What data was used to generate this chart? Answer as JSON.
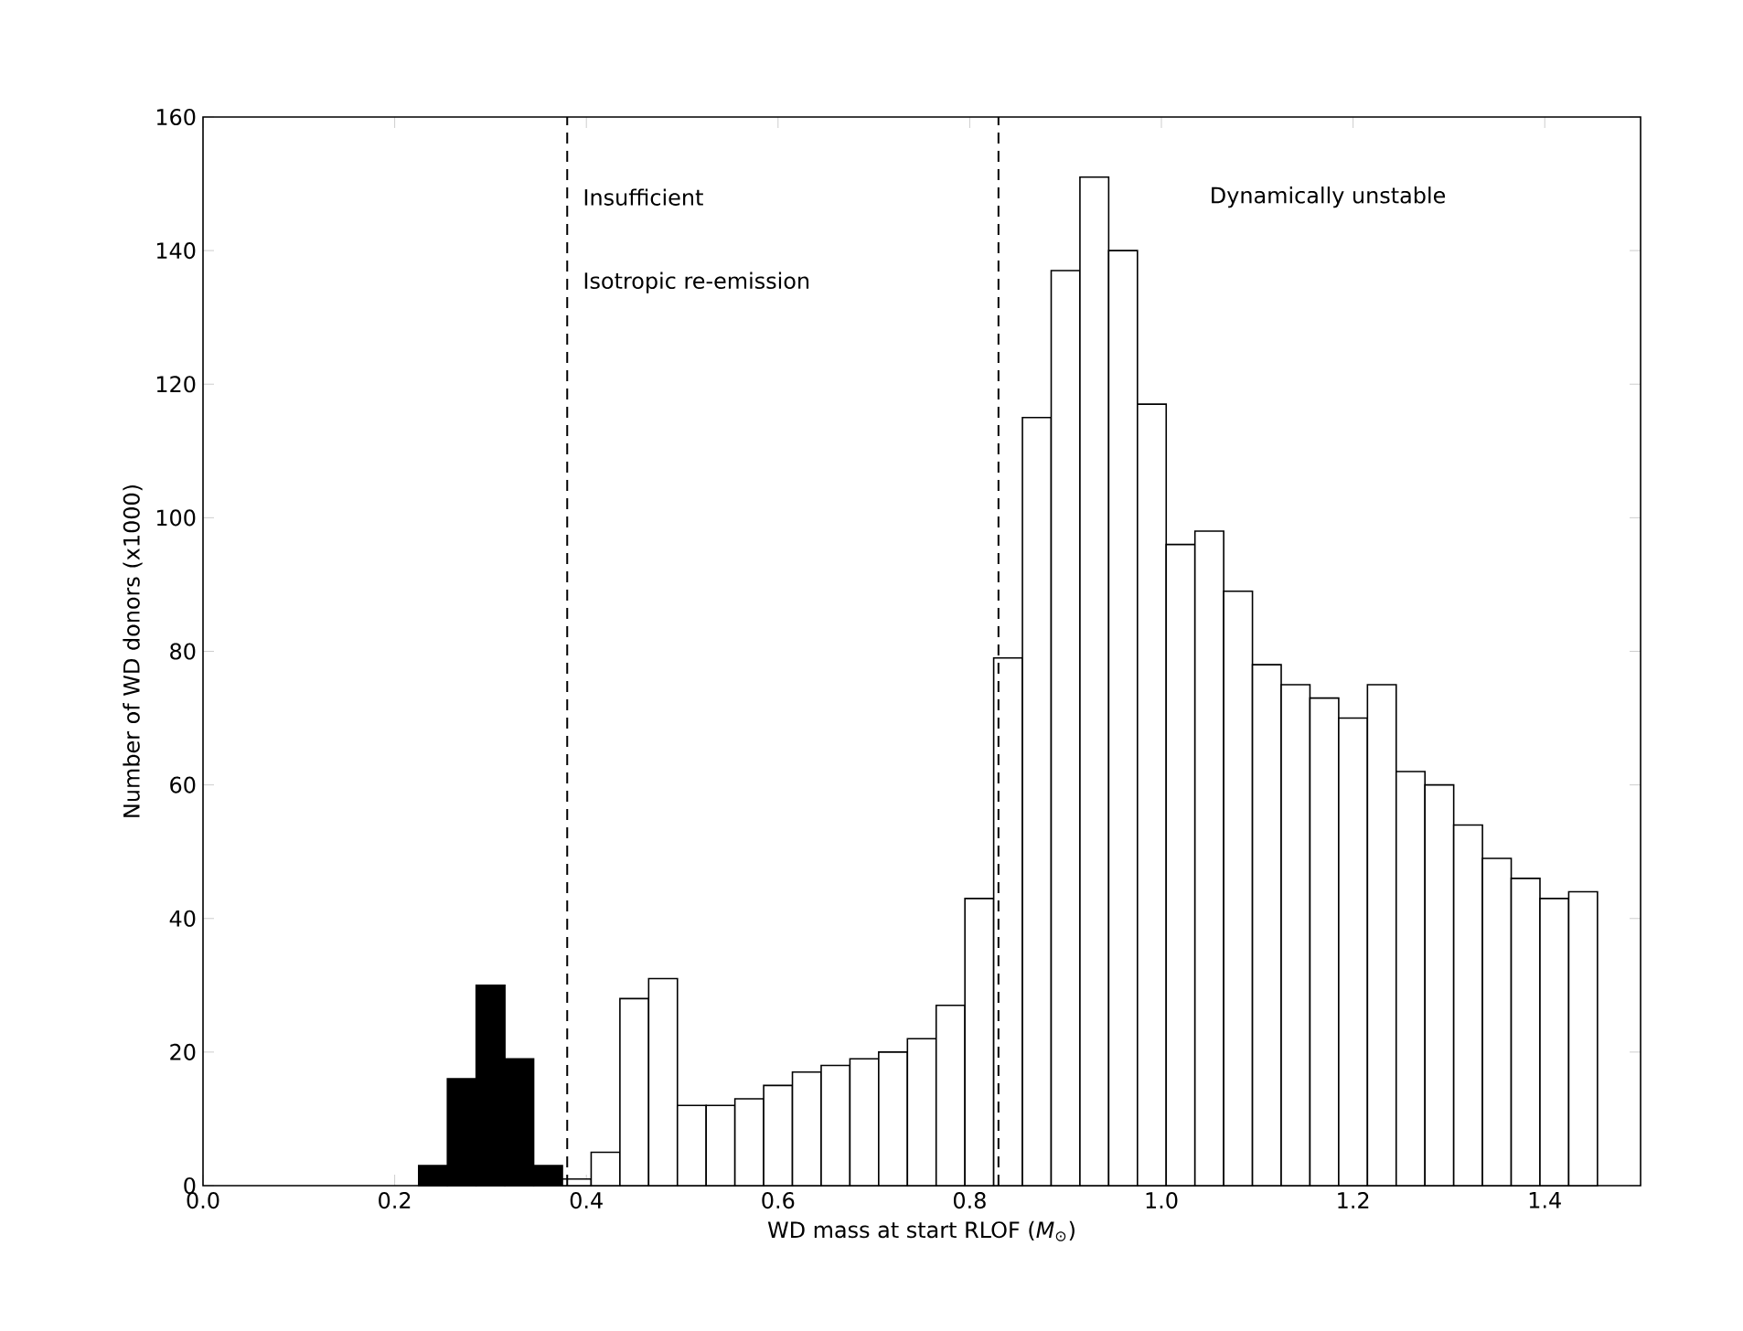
{
  "chart_data": {
    "type": "histogram",
    "xlabel": "WD mass at start RLOF (*M*$_{⊙}$)",
    "ylabel": "Number of WD donors (x1000)",
    "bins": [
      0.225,
      0.255,
      0.285,
      0.315,
      0.345,
      0.375,
      0.405,
      0.435,
      0.465,
      0.495,
      0.525,
      0.555,
      0.585,
      0.615,
      0.645,
      0.675,
      0.705,
      0.735,
      0.765,
      0.795,
      0.825,
      0.855,
      0.885,
      0.915,
      0.945,
      0.975,
      1.005,
      1.035,
      1.065,
      1.095,
      1.125,
      1.155,
      1.185,
      1.215,
      1.245,
      1.275,
      1.305,
      1.335,
      1.365,
      1.395,
      1.425,
      1.455
    ],
    "series": [
      {
        "color": "#000000",
        "values": [
          3,
          16,
          30,
          19,
          3,
          null,
          null,
          null,
          null,
          null,
          null,
          null,
          null,
          null,
          null,
          null,
          null,
          null,
          null,
          null,
          null,
          null,
          null,
          null,
          null,
          null,
          null,
          null,
          null,
          null,
          null,
          null,
          null,
          null,
          null,
          null,
          null,
          null,
          null,
          null,
          null
        ]
      },
      {
        "color": "#ffffff",
        "values": [
          null,
          null,
          null,
          null,
          null,
          1,
          5,
          28,
          31,
          12,
          12,
          13,
          15,
          17,
          18,
          19,
          20,
          22,
          27,
          43,
          79,
          115,
          137,
          151,
          140,
          117,
          96,
          98,
          89,
          78,
          75,
          73,
          70,
          75,
          62,
          60,
          54,
          49,
          46,
          43,
          44
        ]
      }
    ],
    "xlim": [
      0,
      1.5
    ],
    "ylim": [
      0,
      160
    ],
    "xticks": [
      {
        "value": 0,
        "label": "0.0"
      },
      {
        "value": 0.2,
        "label": "0.2"
      },
      {
        "value": 0.4,
        "label": "0.4"
      },
      {
        "value": 0.6,
        "label": "0.6"
      },
      {
        "value": 0.8,
        "label": "0.8"
      },
      {
        "value": 1.0,
        "label": "1.0"
      },
      {
        "value": 1.2,
        "label": "1.2"
      },
      {
        "value": 1.4,
        "label": "1.4"
      }
    ],
    "yticks": [
      0,
      20,
      40,
      60,
      80,
      100,
      120,
      140,
      160
    ],
    "ref_lines": [
      {
        "axis": "x",
        "value": 0.38,
        "line_style": "dashed",
        "color": "#000000"
      },
      {
        "axis": "x",
        "value": 0.83,
        "line_style": "dashed",
        "color": "#000000"
      }
    ],
    "annotations": [
      "Insufficient",
      "Isotropic re-emission",
      "Dynamically unstable"
    ],
    "grid": false
  }
}
